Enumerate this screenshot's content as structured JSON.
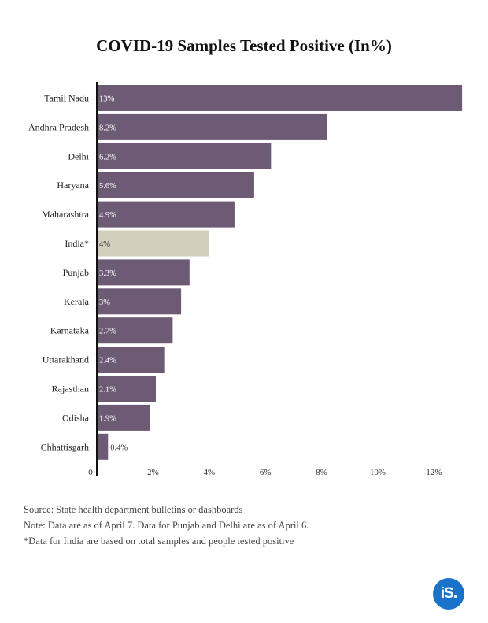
{
  "chart_data": {
    "type": "bar",
    "orientation": "horizontal",
    "title": "COVID-19 Samples Tested Positive (In%)",
    "categories": [
      "Tamil Nadu",
      "Andhra Pradesh",
      "Delhi",
      "Haryana",
      "Maharashtra",
      "India*",
      "Punjab",
      "Kerala",
      "Karnataka",
      "Uttarakhand",
      "Rajasthan",
      "Odisha",
      "Chhattisgarh"
    ],
    "values": [
      13,
      8.2,
      6.2,
      5.6,
      4.9,
      4,
      3.3,
      3,
      2.7,
      2.4,
      2.1,
      1.9,
      0.4
    ],
    "value_labels": [
      "13%",
      "8.2%",
      "6.2%",
      "5.6%",
      "4.9%",
      "4%",
      "3.3%",
      "3%",
      "2.7%",
      "2.4%",
      "2.1%",
      "1.9%",
      "0.4%"
    ],
    "highlight_category": "India*",
    "x_ticks": [
      0,
      2,
      4,
      6,
      8,
      10,
      12
    ],
    "x_tick_labels": [
      "0",
      "2%",
      "4%",
      "6%",
      "8%",
      "10%",
      "12%"
    ],
    "xlim": [
      0,
      13
    ],
    "grid": false,
    "colors": {
      "bar": "#6d5a74",
      "highlight": "#d2cfbf"
    }
  },
  "footer": {
    "source": "Source: State health department bulletins or dashboards",
    "note": "Note: Data are as of April 7. Data for Punjab and Delhi are as of April 6.",
    "asterisk": "*Data for India are based on total samples and people tested positive"
  },
  "logo": {
    "text": "iS."
  }
}
